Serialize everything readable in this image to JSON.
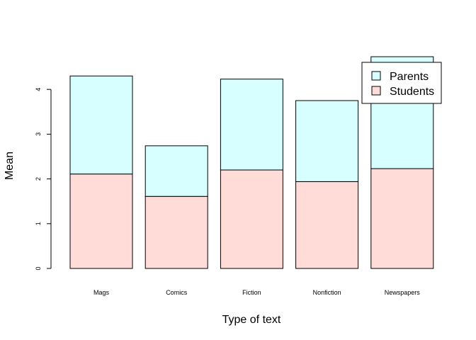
{
  "chart_data": {
    "type": "bar",
    "stacked": true,
    "categories": [
      "Mags",
      "Comics",
      "Fiction",
      "Nonfiction",
      "Newspapers"
    ],
    "series": [
      {
        "name": "Students",
        "values": [
          2.11,
          1.61,
          2.2,
          1.94,
          2.23
        ],
        "color": "#ffdcd8"
      },
      {
        "name": "Parents",
        "values": [
          2.19,
          1.13,
          2.03,
          1.81,
          2.5
        ],
        "color": "#d8ffff"
      }
    ],
    "legend_order": [
      "Parents",
      "Students"
    ],
    "legend_position": "top-right",
    "xlabel": "Type of text",
    "ylabel": "Mean",
    "yticks": [
      0,
      1,
      2,
      3,
      4
    ],
    "ylim": [
      0,
      4.8
    ],
    "grid": false
  }
}
